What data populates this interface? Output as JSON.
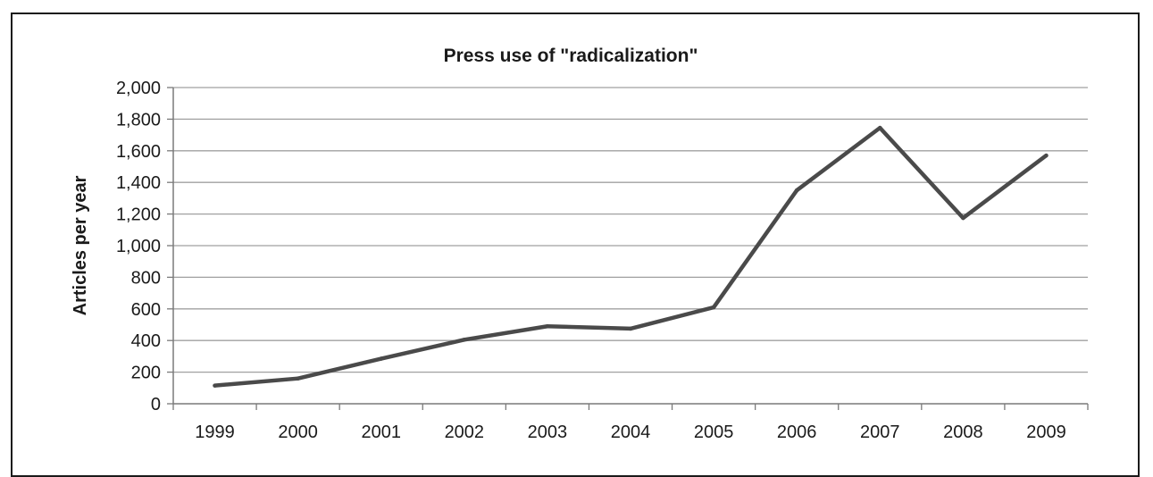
{
  "chart_data": {
    "type": "line",
    "title": "Press use of \"radicalization\"",
    "xlabel": "",
    "ylabel": "Articles per year",
    "categories": [
      "1999",
      "2000",
      "2001",
      "2002",
      "2003",
      "2004",
      "2005",
      "2006",
      "2007",
      "2008",
      "2009"
    ],
    "values": [
      115,
      160,
      285,
      405,
      490,
      475,
      610,
      1350,
      1745,
      1175,
      1570
    ],
    "ylim": [
      0,
      2000
    ],
    "yticks": [
      0,
      200,
      400,
      600,
      800,
      1000,
      1200,
      1400,
      1600,
      1800,
      2000
    ],
    "ytick_labels": [
      "0",
      "200",
      "400",
      "600",
      "800",
      "1,000",
      "1,200",
      "1,400",
      "1,600",
      "1,800",
      "2,000"
    ],
    "grid": true,
    "legend": "none",
    "colors": {
      "line": "#4a4a4a",
      "grid": "#a0a0a0",
      "axis": "#7a7a7a",
      "text": "#1a1a1a",
      "frame": "#1a1a1a"
    }
  }
}
